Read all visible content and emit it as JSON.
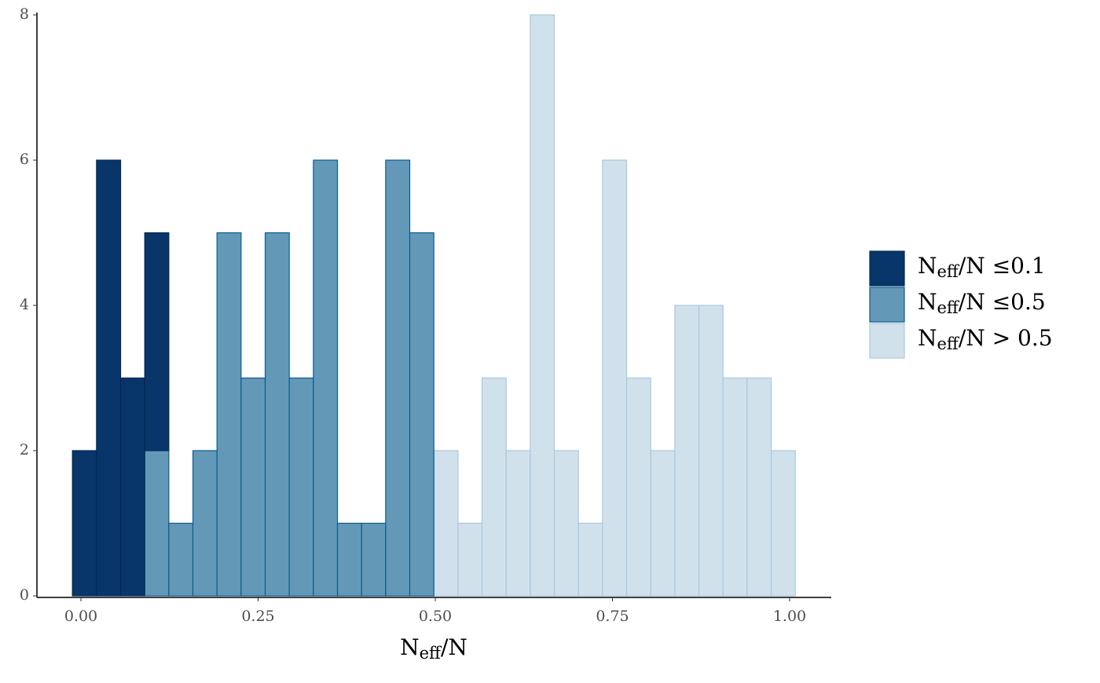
{
  "chart_data": {
    "type": "histogram",
    "x_label": "Neff/N",
    "bins": [
      -0.012,
      0.022,
      0.056,
      0.09,
      0.124,
      0.158,
      0.192,
      0.226,
      0.26,
      0.294,
      0.328,
      0.362,
      0.396,
      0.43,
      0.464,
      0.498,
      0.532,
      0.566,
      0.6,
      0.634,
      0.668,
      0.702,
      0.736,
      0.77,
      0.804,
      0.838,
      0.872,
      0.906,
      0.94,
      0.974,
      1.008
    ],
    "series": [
      {
        "name": "Neff/N ≤0.1",
        "color": "#08366b",
        "edge": "#04284f",
        "values": [
          2,
          6,
          3,
          3,
          0,
          0,
          0,
          0,
          0,
          0,
          0,
          0,
          0,
          0,
          0,
          0,
          0,
          0,
          0,
          0,
          0,
          0,
          0,
          0,
          0,
          0,
          0,
          0,
          0,
          0
        ]
      },
      {
        "name": "Neff/N ≤0.5",
        "color": "#6399b7",
        "edge": "#0b5d91",
        "values": [
          0,
          0,
          0,
          2,
          1,
          2,
          5,
          3,
          5,
          3,
          6,
          1,
          1,
          6,
          5,
          0,
          0,
          0,
          0,
          0,
          0,
          0,
          0,
          0,
          0,
          0,
          0,
          0,
          0,
          0
        ]
      },
      {
        "name": "Neff/N > 0.5",
        "color": "#d1e1ec",
        "edge": "#a9c8de",
        "values": [
          0,
          0,
          0,
          0,
          0,
          0,
          0,
          0,
          0,
          0,
          0,
          0,
          0,
          0,
          0,
          2,
          1,
          3,
          2,
          8,
          2,
          1,
          6,
          3,
          2,
          4,
          4,
          3,
          3,
          2
        ]
      }
    ],
    "xlim": [
      -0.062,
      1.058
    ],
    "xticks": [
      {
        "value": 0,
        "label": "0.00"
      },
      {
        "value": 0.25,
        "label": "0.25"
      },
      {
        "value": 0.5,
        "label": "0.50"
      },
      {
        "value": 0.75,
        "label": "0.75"
      },
      {
        "value": 1,
        "label": "1.00"
      }
    ],
    "ylim": [
      0,
      8
    ],
    "yticks": [
      0,
      2,
      4,
      6,
      8
    ]
  }
}
